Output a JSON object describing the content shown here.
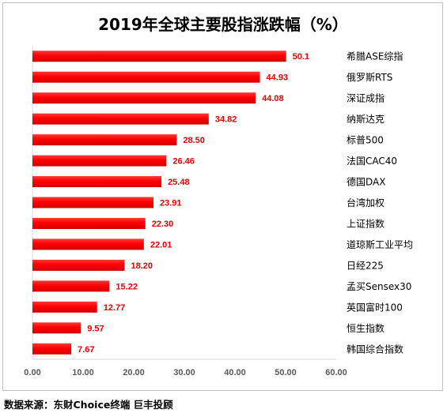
{
  "chart_data": {
    "type": "bar",
    "orientation": "horizontal",
    "title": "2019年全球主要股指涨跌幅（%）",
    "categories": [
      "希腊ASE综指",
      "俄罗斯RTS",
      "深证成指",
      "纳斯达克",
      "标普500",
      "法国CAC40",
      "德国DAX",
      "台湾加权",
      "上证指数",
      "道琼斯工业平均",
      "日经225",
      "孟买Sensex30",
      "英国富时100",
      "恒生指数",
      "韩国综合指数"
    ],
    "values": [
      50.1,
      44.93,
      44.08,
      34.82,
      28.5,
      26.46,
      25.48,
      23.91,
      22.3,
      22.01,
      18.2,
      15.22,
      12.77,
      9.57,
      7.67
    ],
    "value_labels": [
      "50.1",
      "44.93",
      "44.08",
      "34.82",
      "28.50",
      "26.46",
      "25.48",
      "23.91",
      "22.30",
      "22.01",
      "18.20",
      "15.22",
      "12.77",
      "9.57",
      "7.67"
    ],
    "xlim": [
      0,
      60
    ],
    "xtick_labels": [
      "0.00",
      "10.00",
      "20.00",
      "30.00",
      "40.00",
      "50.00",
      "60.00"
    ],
    "category_axis_side": "right",
    "grid": false,
    "legend": "none",
    "bar_color": "#ff0000",
    "value_label_color": "#e60000"
  },
  "source": "数据来源：东财Choice终端 巨丰投顾"
}
